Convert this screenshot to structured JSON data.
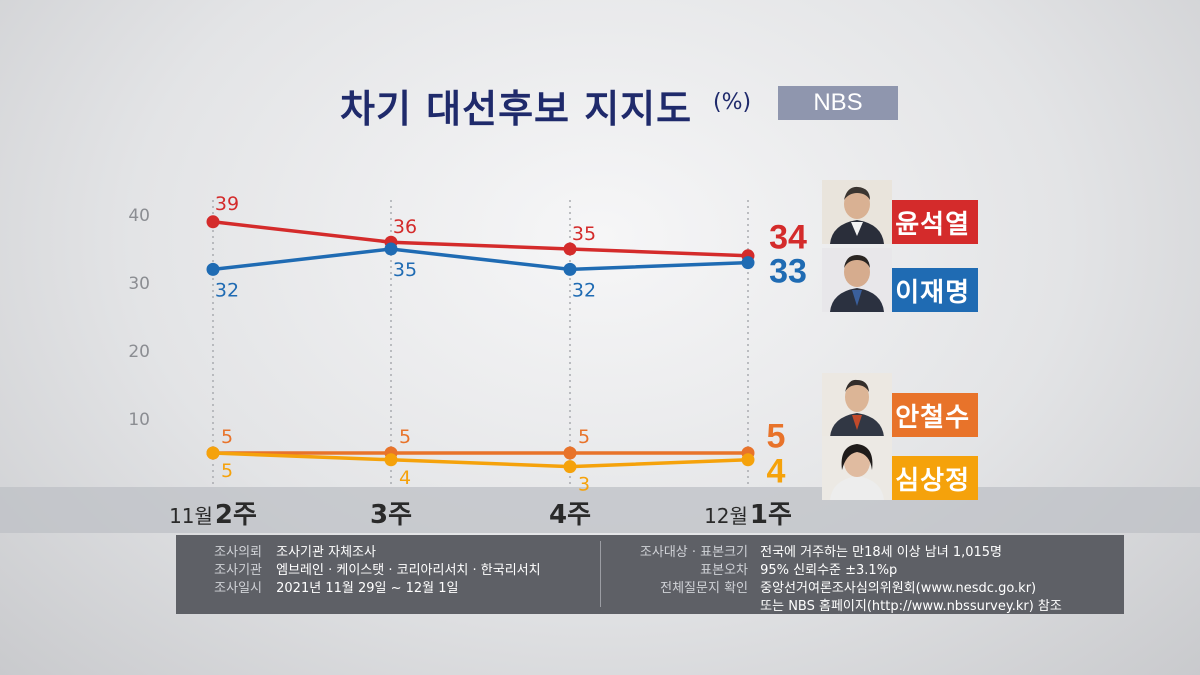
{
  "title": "차기 대선후보 지지도",
  "title_unit": "(%)",
  "brand": "NBS",
  "chart_data": {
    "type": "line",
    "categories": [
      {
        "pre": "11월",
        "main": "2주"
      },
      {
        "pre": "",
        "main": "3주"
      },
      {
        "pre": "",
        "main": "4주"
      },
      {
        "pre": "12월",
        "main": "1주"
      }
    ],
    "ylim": [
      0,
      45
    ],
    "yticks": [
      10,
      20,
      30,
      40
    ],
    "grid": false,
    "series": [
      {
        "name": "윤석열",
        "color": "#d42b2b",
        "values": [
          39,
          36,
          35,
          34
        ]
      },
      {
        "name": "이재명",
        "color": "#1f6bb3",
        "values": [
          32,
          35,
          32,
          33
        ]
      },
      {
        "name": "안철수",
        "color": "#e8732a",
        "values": [
          5,
          5,
          5,
          5
        ]
      },
      {
        "name": "심상정",
        "color": "#f5a20b",
        "values": [
          5,
          4,
          3,
          4
        ]
      }
    ]
  },
  "candidates": [
    {
      "name": "윤석열",
      "value": "34",
      "color": "#d42b2b"
    },
    {
      "name": "이재명",
      "value": "33",
      "color": "#1f6bb3"
    },
    {
      "name": "안철수",
      "value": "5",
      "color": "#e8732a"
    },
    {
      "name": "심상정",
      "value": "4",
      "color": "#f5a20b"
    }
  ],
  "info": {
    "left": [
      {
        "label": "조사의뢰",
        "value": "조사기관 자체조사"
      },
      {
        "label": "조사기관",
        "value": "엠브레인 · 케이스탯 · 코리아리서치 · 한국리서치"
      },
      {
        "label": "조사일시",
        "value": "2021년 11월 29일 ~ 12월 1일"
      }
    ],
    "right": [
      {
        "label": "조사대상 · 표본크기",
        "value": "전국에 거주하는 만18세 이상 남녀 1,015명"
      },
      {
        "label": "표본오차",
        "value": "95% 신뢰수준 ±3.1%p"
      },
      {
        "label": "전체질문지 확인",
        "value": "중앙선거여론조사심의위원회(www.nesdc.go.kr)"
      },
      {
        "label": "",
        "value": "또는 NBS 홈페이지(http://www.nbssurvey.kr) 참조"
      }
    ]
  }
}
